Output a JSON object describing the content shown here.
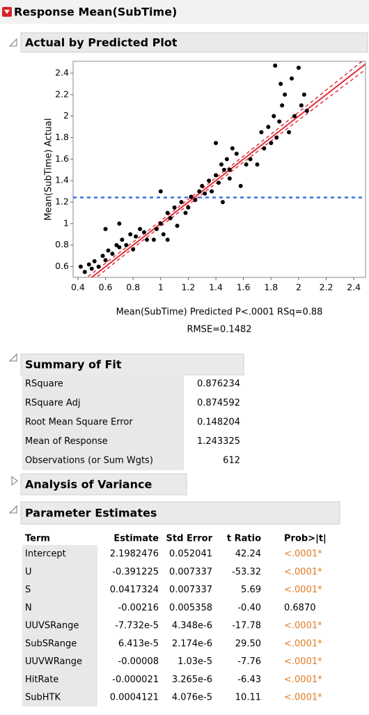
{
  "header": {
    "title": "Response Mean(SubTime)"
  },
  "actual_by_predicted": {
    "title": "Actual by Predicted Plot",
    "chart": {
      "type": "scatter",
      "x_label": "Mean(SubTime) Predicted P<.0001 RSq=0.88",
      "x_label_2": "RMSE=0.1482",
      "y_label": "Mean(SubTime) Actual",
      "color": "#000000",
      "fit_color": "#e0303a",
      "mean_color": "#3a6fe8",
      "xlim": [
        0.365,
        2.485
      ],
      "ylim": [
        0.5,
        2.51
      ],
      "xticks": [
        0.4,
        0.6,
        0.8,
        1,
        1.2,
        1.4,
        1.6,
        1.8,
        2,
        2.2,
        2.4
      ],
      "yticks": [
        0.6,
        0.8,
        1,
        1.2,
        1.4,
        1.6,
        1.8,
        2,
        2.2,
        2.4
      ],
      "x": [
        0.42,
        0.45,
        0.48,
        0.5,
        0.52,
        0.55,
        0.58,
        0.6,
        0.62,
        0.65,
        0.68,
        0.7,
        0.72,
        0.75,
        0.78,
        0.8,
        0.82,
        0.85,
        0.88,
        0.9,
        0.95,
        0.97,
        1.0,
        1.02,
        1.05,
        1.07,
        1.1,
        1.12,
        1.15,
        1.18,
        1.2,
        1.22,
        1.25,
        1.28,
        1.3,
        1.32,
        1.35,
        1.37,
        1.4,
        1.42,
        1.44,
        1.46,
        1.48,
        1.5,
        1.52,
        1.55,
        1.58,
        1.62,
        1.65,
        1.7,
        1.73,
        1.75,
        1.78,
        1.8,
        1.82,
        1.84,
        1.86,
        1.88,
        1.9,
        1.93,
        1.95,
        2.0,
        2.02,
        2.04,
        2.06,
        1.83,
        1.87,
        1.97,
        0.6,
        0.7,
        1.0,
        1.05,
        1.4,
        1.45,
        1.5
      ],
      "y": [
        0.6,
        0.55,
        0.62,
        0.58,
        0.65,
        0.6,
        0.7,
        0.66,
        0.75,
        0.72,
        0.8,
        0.78,
        0.85,
        0.8,
        0.9,
        0.76,
        0.88,
        0.95,
        0.92,
        0.85,
        0.85,
        0.95,
        1.0,
        0.9,
        1.1,
        1.05,
        1.15,
        0.98,
        1.2,
        1.1,
        1.15,
        1.25,
        1.22,
        1.3,
        1.35,
        1.28,
        1.4,
        1.3,
        1.45,
        1.38,
        1.55,
        1.5,
        1.6,
        1.42,
        1.7,
        1.65,
        1.35,
        1.55,
        1.6,
        1.55,
        1.85,
        1.7,
        1.9,
        1.75,
        2.0,
        1.8,
        1.95,
        2.1,
        2.2,
        1.85,
        2.35,
        2.45,
        2.1,
        2.2,
        2.05,
        2.47,
        2.3,
        2.0,
        0.95,
        1.0,
        1.3,
        0.85,
        1.75,
        1.2,
        1.5
      ]
    }
  },
  "summary_of_fit": {
    "title": "Summary of Fit",
    "rows": [
      [
        "RSquare",
        "0.876234"
      ],
      [
        "RSquare Adj",
        "0.874592"
      ],
      [
        "Root Mean Square Error",
        "0.148204"
      ],
      [
        "Mean of Response",
        "1.243325"
      ],
      [
        "Observations (or Sum Wgts)",
        "612"
      ]
    ]
  },
  "analysis_of_variance": {
    "title": "Analysis of Variance"
  },
  "parameter_estimates": {
    "title": "Parameter Estimates",
    "columns": [
      "Term",
      "Estimate",
      "Std Error",
      "t Ratio",
      "Prob>|t|"
    ],
    "rows": [
      [
        "Intercept",
        "2.1982476",
        "0.052041",
        "42.24",
        "<.0001*"
      ],
      [
        "U",
        "-0.391225",
        "0.007337",
        "-53.32",
        "<.0001*"
      ],
      [
        "S",
        "0.0417324",
        "0.007337",
        "5.69",
        "<.0001*"
      ],
      [
        "N",
        "-0.00216",
        "0.005358",
        "-0.40",
        "0.6870"
      ],
      [
        "UUVSRange",
        "-7.732e-5",
        "4.348e-6",
        "-17.78",
        "<.0001*"
      ],
      [
        "SubSRange",
        "6.413e-5",
        "2.174e-6",
        "29.50",
        "<.0001*"
      ],
      [
        "UUVWRange",
        "-0.00008",
        "1.03e-5",
        "-7.76",
        "<.0001*"
      ],
      [
        "HitRate",
        "-0.000021",
        "3.265e-6",
        "-6.43",
        "<.0001*"
      ],
      [
        "SubHTK",
        "0.0004121",
        "4.076e-5",
        "10.11",
        "<.0001*"
      ]
    ]
  }
}
